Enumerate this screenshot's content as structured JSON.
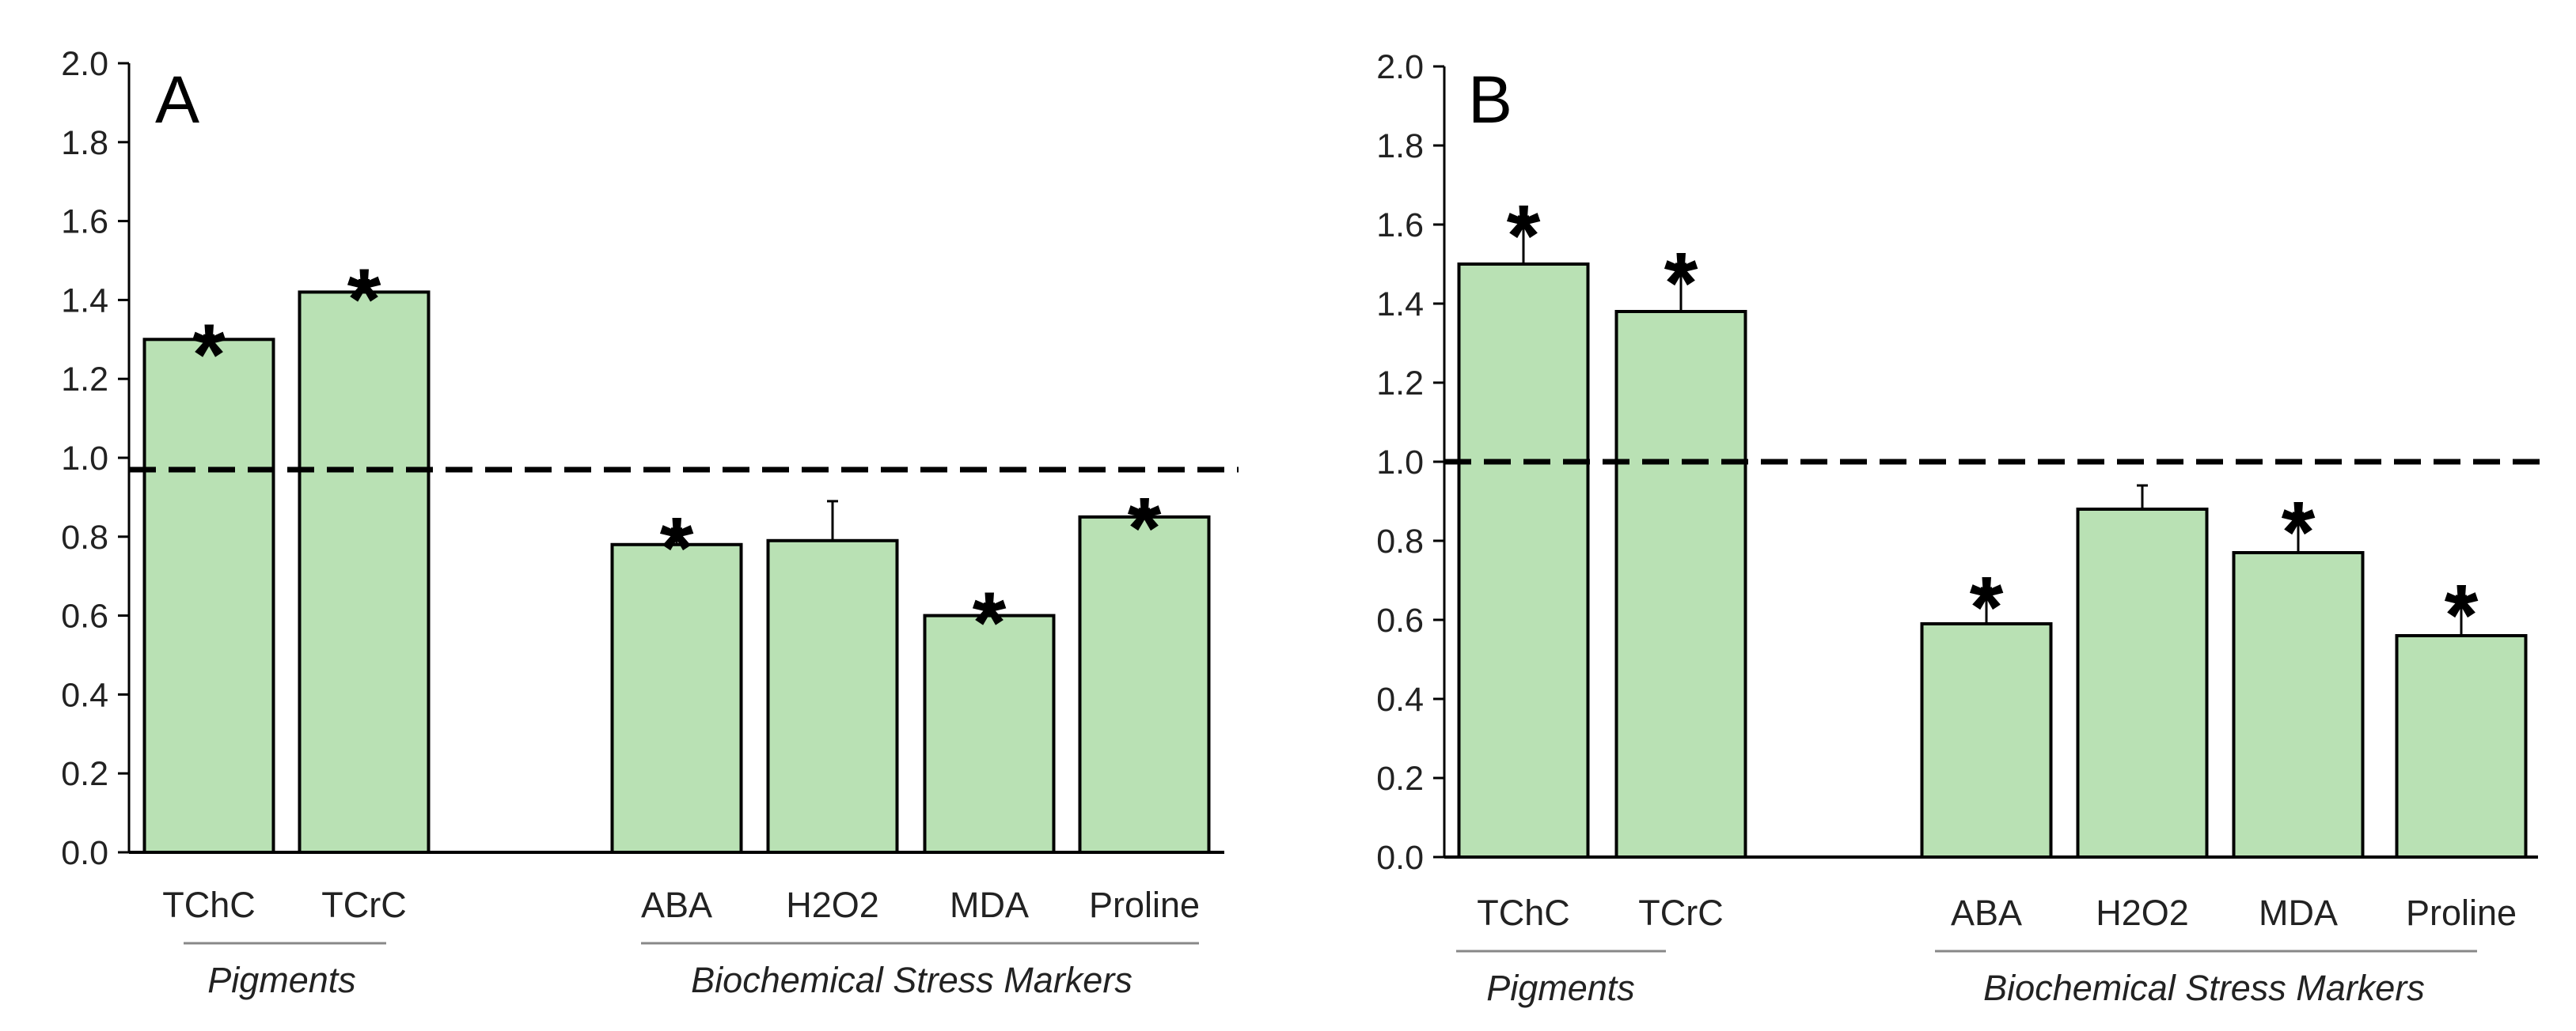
{
  "chart_data": [
    {
      "type": "bar",
      "panel_label": "A",
      "categories": [
        "TChC",
        "TCrC",
        "ABA",
        "H2O2",
        "MDA",
        "Proline"
      ],
      "values": [
        1.3,
        1.42,
        0.78,
        0.79,
        0.6,
        0.85
      ],
      "error": [
        0.01,
        0.03,
        0.04,
        0.1,
        0.03,
        0.02
      ],
      "significant": [
        true,
        true,
        true,
        false,
        true,
        true
      ],
      "significance_marker": "*",
      "reference_line": 0.97,
      "ylim": [
        0.0,
        2.0
      ],
      "yticks": [
        "0.0",
        "0.2",
        "0.4",
        "0.6",
        "0.8",
        "1.0",
        "1.2",
        "1.4",
        "1.6",
        "1.8",
        "2.0"
      ],
      "groups": [
        {
          "label": "Pigments",
          "categories": [
            "TChC",
            "TCrC"
          ]
        },
        {
          "label": "Biochemical Stress Markers",
          "categories": [
            "ABA",
            "H2O2",
            "MDA",
            "Proline"
          ]
        }
      ],
      "bar_color": "#b9e1b4",
      "xlabel": "",
      "ylabel": "",
      "grid": false
    },
    {
      "type": "bar",
      "panel_label": "B",
      "categories": [
        "TChC",
        "TCrC",
        "ABA",
        "H2O2",
        "MDA",
        "Proline"
      ],
      "values": [
        1.5,
        1.38,
        0.59,
        0.88,
        0.77,
        0.56
      ],
      "error": [
        0.12,
        0.12,
        0.09,
        0.06,
        0.1,
        0.1
      ],
      "significant": [
        true,
        true,
        true,
        false,
        true,
        true
      ],
      "significance_marker": "*",
      "reference_line": 1.0,
      "ylim": [
        0.0,
        2.0
      ],
      "yticks": [
        "0.0",
        "0.2",
        "0.4",
        "0.6",
        "0.8",
        "1.0",
        "1.2",
        "1.4",
        "1.6",
        "1.8",
        "2.0"
      ],
      "groups": [
        {
          "label": "Pigments",
          "categories": [
            "TChC",
            "TCrC"
          ]
        },
        {
          "label": "Biochemical Stress Markers",
          "categories": [
            "ABA",
            "H2O2",
            "MDA",
            "Proline"
          ]
        }
      ],
      "bar_color": "#b9e1b4",
      "xlabel": "",
      "ylabel": "",
      "grid": false
    }
  ]
}
